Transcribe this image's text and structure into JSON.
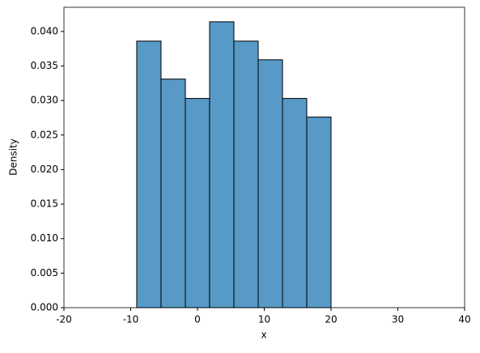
{
  "chart_data": {
    "type": "histogram",
    "x_label": "x",
    "y_label": "Density",
    "bins": [
      -9.1,
      -5.46,
      -1.82,
      1.81,
      5.45,
      9.09,
      12.73,
      16.36,
      20.0
    ],
    "values": [
      0.0386,
      0.0331,
      0.0303,
      0.0414,
      0.0386,
      0.0359,
      0.0303,
      0.0276
    ],
    "color": "#5799c7",
    "xlim": [
      -20,
      40
    ],
    "xticks": [
      -20,
      -10,
      0,
      10,
      20,
      30,
      40
    ],
    "ylim": [
      0,
      0.0435
    ],
    "yticks": [
      {
        "value": 0,
        "label": "0.000"
      },
      {
        "value": 0.005,
        "label": "0.005"
      },
      {
        "value": 0.01,
        "label": "0.010"
      },
      {
        "value": 0.015,
        "label": "0.015"
      },
      {
        "value": 0.02,
        "label": "0.020"
      },
      {
        "value": 0.025,
        "label": "0.025"
      },
      {
        "value": 0.03,
        "label": "0.030"
      },
      {
        "value": 0.035,
        "label": "0.035"
      },
      {
        "value": 0.04,
        "label": "0.040"
      }
    ]
  }
}
